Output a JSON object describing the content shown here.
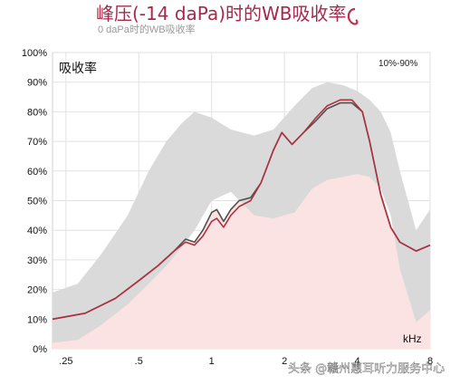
{
  "chart_data": {
    "type": "line",
    "title": "峰压(-14 daPa)时的WB吸收率",
    "title_icon": "ear-icon",
    "subtitle": "0 daPa时的WB吸收率",
    "ylabel": "吸收率",
    "xlabel": "kHz",
    "norm_label": "10%-90%",
    "x_scale": "log",
    "xlim": [
      0.22,
      8
    ],
    "ylim": [
      0,
      100
    ],
    "y_ticks": [
      "0%",
      "10%",
      "20%",
      "30%",
      "40%",
      "50%",
      "60%",
      "70%",
      "80%",
      "90%",
      "100%"
    ],
    "x_tick_labels": [
      ".25",
      ".5",
      "1",
      "2",
      "4",
      "8"
    ],
    "x_tick_values": [
      0.25,
      0.5,
      1,
      2,
      4,
      8
    ],
    "grid": true,
    "colors": {
      "peak": "#b03040",
      "zero": "#505050",
      "band": "#d8d8d8",
      "fill": "#fbe3e3",
      "title": "#a8284a"
    },
    "norm_band": {
      "x": [
        0.22,
        0.28,
        0.35,
        0.45,
        0.55,
        0.65,
        0.75,
        0.85,
        1.0,
        1.2,
        1.5,
        1.8,
        2.2,
        2.6,
        3.0,
        3.5,
        4.0,
        4.5,
        5.0,
        5.5,
        6.0,
        7.0,
        8.0
      ],
      "upper": [
        19,
        22,
        32,
        45,
        60,
        70,
        76,
        80,
        78,
        74,
        72,
        74,
        82,
        88,
        90,
        89,
        87,
        84,
        80,
        73,
        60,
        40,
        47
      ],
      "lower": [
        2,
        3,
        8,
        15,
        22,
        28,
        34,
        40,
        50,
        53,
        45,
        44,
        46,
        54,
        57,
        58,
        59,
        58,
        54,
        45,
        27,
        9,
        13
      ]
    },
    "series": [
      {
        "key": "peak",
        "x": [
          0.22,
          0.3,
          0.4,
          0.5,
          0.6,
          0.7,
          0.78,
          0.85,
          0.92,
          1.0,
          1.05,
          1.12,
          1.2,
          1.3,
          1.45,
          1.6,
          1.8,
          1.95,
          2.15,
          2.4,
          2.7,
          3.0,
          3.4,
          3.8,
          4.2,
          4.5,
          5.0,
          5.5,
          6.0,
          7.0,
          8.0
        ],
        "y": [
          10,
          12,
          17,
          23,
          28,
          33,
          36,
          35,
          38,
          43,
          44,
          41,
          45,
          48,
          50,
          56,
          67,
          73,
          69,
          73,
          78,
          82,
          84,
          84,
          80,
          70,
          52,
          41,
          36,
          33,
          35
        ]
      },
      {
        "key": "zero",
        "x": [
          0.22,
          0.3,
          0.4,
          0.5,
          0.6,
          0.7,
          0.78,
          0.85,
          0.92,
          1.0,
          1.05,
          1.12,
          1.2,
          1.3,
          1.45,
          1.6,
          1.8,
          1.95,
          2.15,
          2.4,
          2.7,
          3.0,
          3.4,
          3.8,
          4.2,
          4.5,
          5.0,
          5.5,
          6.0,
          7.0,
          8.0
        ],
        "y": [
          10,
          12,
          17,
          23,
          28,
          33,
          37,
          36,
          40,
          46,
          47,
          43,
          47,
          50,
          51,
          56,
          67,
          73,
          69,
          73,
          77,
          81,
          83,
          83,
          80,
          70,
          52,
          41,
          36,
          33,
          35
        ]
      }
    ]
  },
  "watermark": "头条 @赣州惠耳听力服务中心"
}
